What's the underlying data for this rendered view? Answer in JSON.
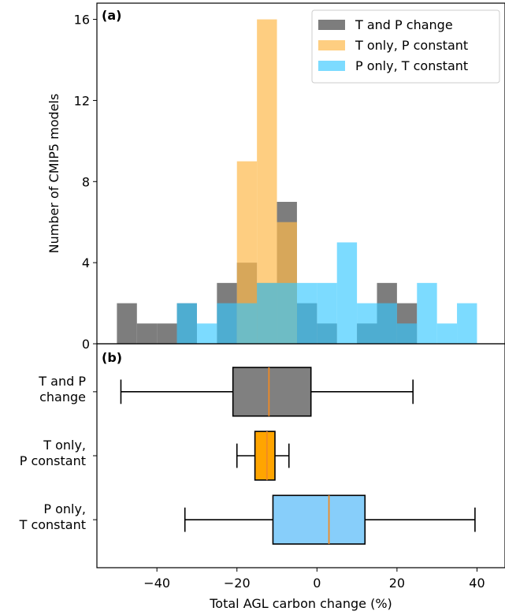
{
  "chart_data": [
    {
      "panel": "(a)",
      "type": "histogram",
      "ylabel": "Number of CMIP5 models",
      "ylim": [
        0,
        16.8
      ],
      "yticks": [
        0,
        4,
        8,
        12,
        16
      ],
      "legend_position": "top-right",
      "bin_width": 5,
      "series": [
        {
          "name": "T and P change",
          "color": "#666666",
          "opacity": 0.85,
          "bins": [
            [
              -50,
              2
            ],
            [
              -45,
              1
            ],
            [
              -40,
              1
            ],
            [
              -35,
              2
            ],
            [
              -25,
              3
            ],
            [
              -20,
              4
            ],
            [
              -15,
              3
            ],
            [
              -10,
              7
            ],
            [
              -5,
              2
            ],
            [
              0,
              1
            ],
            [
              5,
              0
            ],
            [
              10,
              1
            ],
            [
              15,
              3
            ],
            [
              20,
              2
            ]
          ]
        },
        {
          "name": "T only, P constant",
          "color": "#fdb94c",
          "opacity": 0.7,
          "bins": [
            [
              -20,
              9
            ],
            [
              -15,
              16
            ],
            [
              -10,
              6
            ]
          ]
        },
        {
          "name": "P only, T constant",
          "color": "#35c8ff",
          "opacity": 0.65,
          "bins": [
            [
              -35,
              2
            ],
            [
              -30,
              1
            ],
            [
              -25,
              2
            ],
            [
              -20,
              2
            ],
            [
              -15,
              3
            ],
            [
              -10,
              3
            ],
            [
              -5,
              3
            ],
            [
              0,
              3
            ],
            [
              5,
              5
            ],
            [
              10,
              2
            ],
            [
              15,
              2
            ],
            [
              20,
              1
            ],
            [
              25,
              3
            ],
            [
              30,
              1
            ],
            [
              35,
              2
            ]
          ]
        }
      ]
    },
    {
      "panel": "(b)",
      "type": "boxplot",
      "xlabel": "Total AGL carbon change (%)",
      "xlim": [
        -55,
        47
      ],
      "xticks": [
        -40,
        -20,
        0,
        20,
        40
      ],
      "xtick_labels": [
        "−40",
        "−20",
        "0",
        "20",
        "40"
      ],
      "median_color": "#f08a24",
      "boxes": [
        {
          "label_lines": [
            "T and P",
            "change"
          ],
          "whisker_low": -49,
          "q1": -21,
          "median": -12,
          "q3": -1.5,
          "whisker_high": 24,
          "color": "#808080"
        },
        {
          "label_lines": [
            "T only,",
            "P constant"
          ],
          "whisker_low": -20,
          "q1": -15.5,
          "median": -12.5,
          "q3": -10.5,
          "whisker_high": -7,
          "color": "#ffa500"
        },
        {
          "label_lines": [
            "P only,",
            "T constant"
          ],
          "whisker_low": -33,
          "q1": -11,
          "median": 3,
          "q3": 12,
          "whisker_high": 39.5,
          "color": "#87cefa"
        }
      ]
    }
  ]
}
